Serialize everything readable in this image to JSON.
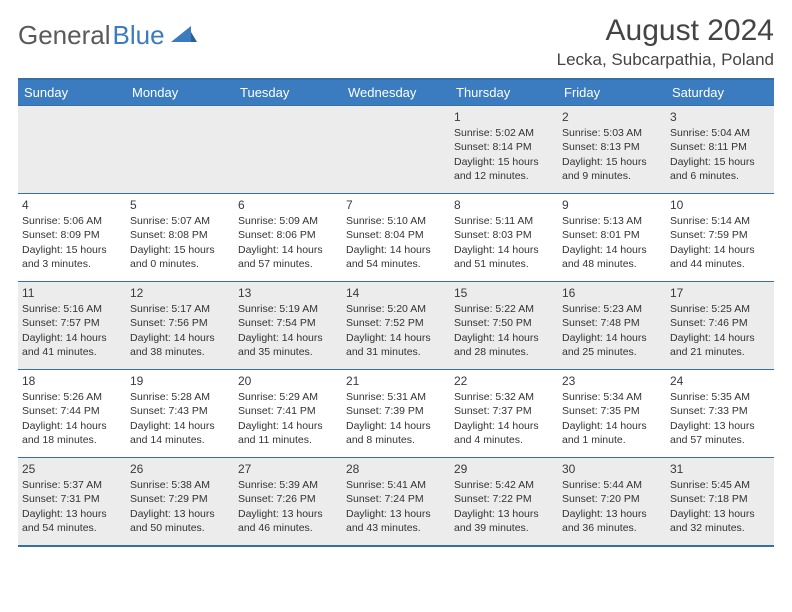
{
  "logo": {
    "text1": "General",
    "text2": "Blue"
  },
  "title": "August 2024",
  "location": "Lecka, Subcarpathia, Poland",
  "weekdays": [
    "Sunday",
    "Monday",
    "Tuesday",
    "Wednesday",
    "Thursday",
    "Friday",
    "Saturday"
  ],
  "colors": {
    "header_bg": "#3a7cbf",
    "border": "#376fa3",
    "shade": "#ececec"
  },
  "grid": {
    "columns": 7,
    "rows": 5,
    "leading_blanks": 4
  },
  "days": [
    {
      "n": "1",
      "sunrise": "5:02 AM",
      "sunset": "8:14 PM",
      "daylight": "15 hours and 12 minutes."
    },
    {
      "n": "2",
      "sunrise": "5:03 AM",
      "sunset": "8:13 PM",
      "daylight": "15 hours and 9 minutes."
    },
    {
      "n": "3",
      "sunrise": "5:04 AM",
      "sunset": "8:11 PM",
      "daylight": "15 hours and 6 minutes."
    },
    {
      "n": "4",
      "sunrise": "5:06 AM",
      "sunset": "8:09 PM",
      "daylight": "15 hours and 3 minutes."
    },
    {
      "n": "5",
      "sunrise": "5:07 AM",
      "sunset": "8:08 PM",
      "daylight": "15 hours and 0 minutes."
    },
    {
      "n": "6",
      "sunrise": "5:09 AM",
      "sunset": "8:06 PM",
      "daylight": "14 hours and 57 minutes."
    },
    {
      "n": "7",
      "sunrise": "5:10 AM",
      "sunset": "8:04 PM",
      "daylight": "14 hours and 54 minutes."
    },
    {
      "n": "8",
      "sunrise": "5:11 AM",
      "sunset": "8:03 PM",
      "daylight": "14 hours and 51 minutes."
    },
    {
      "n": "9",
      "sunrise": "5:13 AM",
      "sunset": "8:01 PM",
      "daylight": "14 hours and 48 minutes."
    },
    {
      "n": "10",
      "sunrise": "5:14 AM",
      "sunset": "7:59 PM",
      "daylight": "14 hours and 44 minutes."
    },
    {
      "n": "11",
      "sunrise": "5:16 AM",
      "sunset": "7:57 PM",
      "daylight": "14 hours and 41 minutes."
    },
    {
      "n": "12",
      "sunrise": "5:17 AM",
      "sunset": "7:56 PM",
      "daylight": "14 hours and 38 minutes."
    },
    {
      "n": "13",
      "sunrise": "5:19 AM",
      "sunset": "7:54 PM",
      "daylight": "14 hours and 35 minutes."
    },
    {
      "n": "14",
      "sunrise": "5:20 AM",
      "sunset": "7:52 PM",
      "daylight": "14 hours and 31 minutes."
    },
    {
      "n": "15",
      "sunrise": "5:22 AM",
      "sunset": "7:50 PM",
      "daylight": "14 hours and 28 minutes."
    },
    {
      "n": "16",
      "sunrise": "5:23 AM",
      "sunset": "7:48 PM",
      "daylight": "14 hours and 25 minutes."
    },
    {
      "n": "17",
      "sunrise": "5:25 AM",
      "sunset": "7:46 PM",
      "daylight": "14 hours and 21 minutes."
    },
    {
      "n": "18",
      "sunrise": "5:26 AM",
      "sunset": "7:44 PM",
      "daylight": "14 hours and 18 minutes."
    },
    {
      "n": "19",
      "sunrise": "5:28 AM",
      "sunset": "7:43 PM",
      "daylight": "14 hours and 14 minutes."
    },
    {
      "n": "20",
      "sunrise": "5:29 AM",
      "sunset": "7:41 PM",
      "daylight": "14 hours and 11 minutes."
    },
    {
      "n": "21",
      "sunrise": "5:31 AM",
      "sunset": "7:39 PM",
      "daylight": "14 hours and 8 minutes."
    },
    {
      "n": "22",
      "sunrise": "5:32 AM",
      "sunset": "7:37 PM",
      "daylight": "14 hours and 4 minutes."
    },
    {
      "n": "23",
      "sunrise": "5:34 AM",
      "sunset": "7:35 PM",
      "daylight": "14 hours and 1 minute."
    },
    {
      "n": "24",
      "sunrise": "5:35 AM",
      "sunset": "7:33 PM",
      "daylight": "13 hours and 57 minutes."
    },
    {
      "n": "25",
      "sunrise": "5:37 AM",
      "sunset": "7:31 PM",
      "daylight": "13 hours and 54 minutes."
    },
    {
      "n": "26",
      "sunrise": "5:38 AM",
      "sunset": "7:29 PM",
      "daylight": "13 hours and 50 minutes."
    },
    {
      "n": "27",
      "sunrise": "5:39 AM",
      "sunset": "7:26 PM",
      "daylight": "13 hours and 46 minutes."
    },
    {
      "n": "28",
      "sunrise": "5:41 AM",
      "sunset": "7:24 PM",
      "daylight": "13 hours and 43 minutes."
    },
    {
      "n": "29",
      "sunrise": "5:42 AM",
      "sunset": "7:22 PM",
      "daylight": "13 hours and 39 minutes."
    },
    {
      "n": "30",
      "sunrise": "5:44 AM",
      "sunset": "7:20 PM",
      "daylight": "13 hours and 36 minutes."
    },
    {
      "n": "31",
      "sunrise": "5:45 AM",
      "sunset": "7:18 PM",
      "daylight": "13 hours and 32 minutes."
    }
  ],
  "labels": {
    "sunrise_prefix": "Sunrise: ",
    "sunset_prefix": "Sunset: ",
    "daylight_prefix": "Daylight: "
  },
  "shaded_rows": [
    0,
    2,
    4
  ]
}
